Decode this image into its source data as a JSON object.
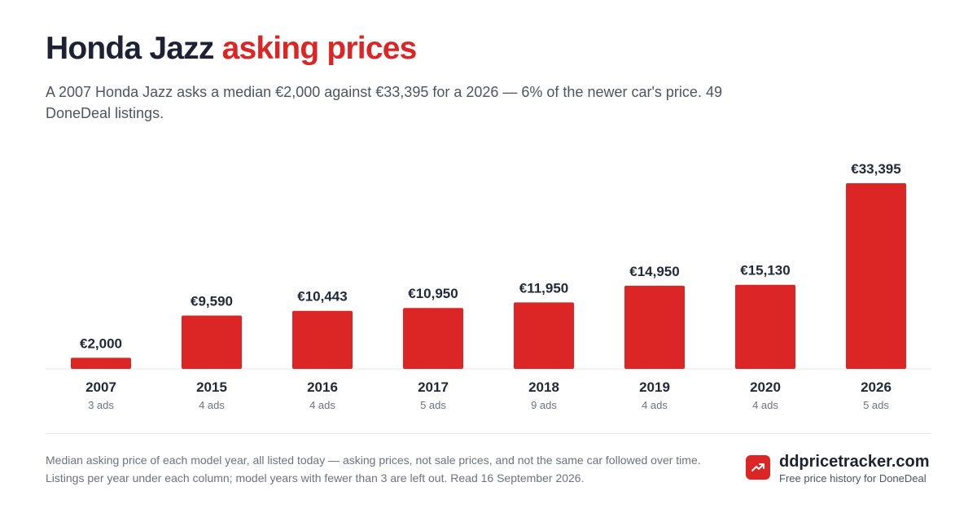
{
  "header": {
    "title_main": "Honda Jazz",
    "title_accent": "asking prices",
    "subtitle": "A 2007 Honda Jazz asks a median €2,000 against €33,395 for a 2026 — 6% of the newer car's price. 49 DoneDeal listings."
  },
  "chart_data": {
    "type": "bar",
    "title": "Honda Jazz asking prices",
    "categories": [
      "2007",
      "2015",
      "2016",
      "2017",
      "2018",
      "2019",
      "2020",
      "2026"
    ],
    "values": [
      2000,
      9590,
      10443,
      10950,
      11950,
      14950,
      15130,
      33395
    ],
    "value_labels": [
      "€2,000",
      "€9,590",
      "€10,443",
      "€10,950",
      "€11,950",
      "€14,950",
      "€15,130",
      "€33,395"
    ],
    "ad_counts": [
      "3 ads",
      "4 ads",
      "4 ads",
      "5 ads",
      "9 ads",
      "4 ads",
      "4 ads",
      "5 ads"
    ],
    "ylim": [
      0,
      33395
    ],
    "grid": false,
    "bar_color": "#dc2626"
  },
  "footer": {
    "note": "Median asking price of each model year, all listed today — asking prices, not sale prices, and not the same car followed over time. Listings per year under each column; model years with fewer than 3 are left out. Read 16 September 2026.",
    "brand_name": "ddpricetracker.com",
    "brand_tagline": "Free price history for DoneDeal",
    "brand_icon": "trending-up-icon"
  },
  "colors": {
    "accent": "#dc2626",
    "text": "#1c2233",
    "muted": "#6b7280"
  }
}
